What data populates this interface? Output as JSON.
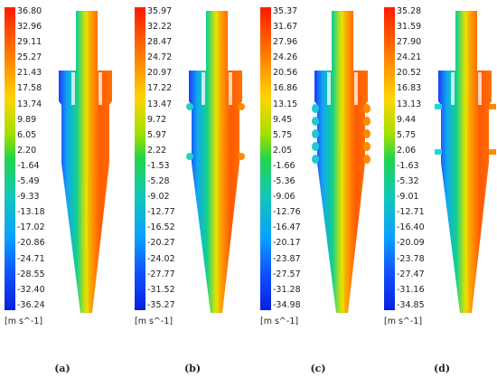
{
  "panels": [
    {
      "label": "(a)",
      "ticks": [
        "36.80",
        "32.96",
        "29.11",
        "25.27",
        "21.43",
        "17.58",
        "13.74",
        "9.89",
        "6.05",
        "2.20",
        "-1.64",
        "-5.49",
        "-9.33",
        "-13.18",
        "-17.02",
        "-20.86",
        "-24.71",
        "-28.55",
        "-32.40",
        "-36.24"
      ],
      "unit": "[m s^-1]",
      "variant": "none"
    },
    {
      "label": "(b)",
      "ticks": [
        "35.97",
        "32.22",
        "28.47",
        "24.72",
        "20.97",
        "17.22",
        "13.47",
        "9.72",
        "5.97",
        "2.22",
        "-1.53",
        "-5.28",
        "-9.02",
        "-12.77",
        "-16.52",
        "-20.27",
        "-24.02",
        "-27.77",
        "-31.52",
        "-35.27"
      ],
      "unit": "[m s^-1]",
      "variant": "small"
    },
    {
      "label": "(c)",
      "ticks": [
        "35.37",
        "31.67",
        "27.96",
        "24.26",
        "20.56",
        "16.86",
        "13.15",
        "9.45",
        "5.75",
        "2.05",
        "-1.66",
        "-5.36",
        "-9.06",
        "-12.76",
        "-16.47",
        "-20.17",
        "-23.87",
        "-27.57",
        "-31.28",
        "-34.98"
      ],
      "unit": "[m s^-1]",
      "variant": "many"
    },
    {
      "label": "(d)",
      "ticks": [
        "35.28",
        "31.59",
        "27.90",
        "24.21",
        "20.52",
        "16.83",
        "13.13",
        "9.44",
        "5.75",
        "2.06",
        "-1.63",
        "-5.32",
        "-9.01",
        "-12.71",
        "-16.40",
        "-20.09",
        "-23.78",
        "-27.47",
        "-31.16",
        "-34.85"
      ],
      "unit": "[m s^-1]",
      "variant": "flat"
    }
  ]
}
